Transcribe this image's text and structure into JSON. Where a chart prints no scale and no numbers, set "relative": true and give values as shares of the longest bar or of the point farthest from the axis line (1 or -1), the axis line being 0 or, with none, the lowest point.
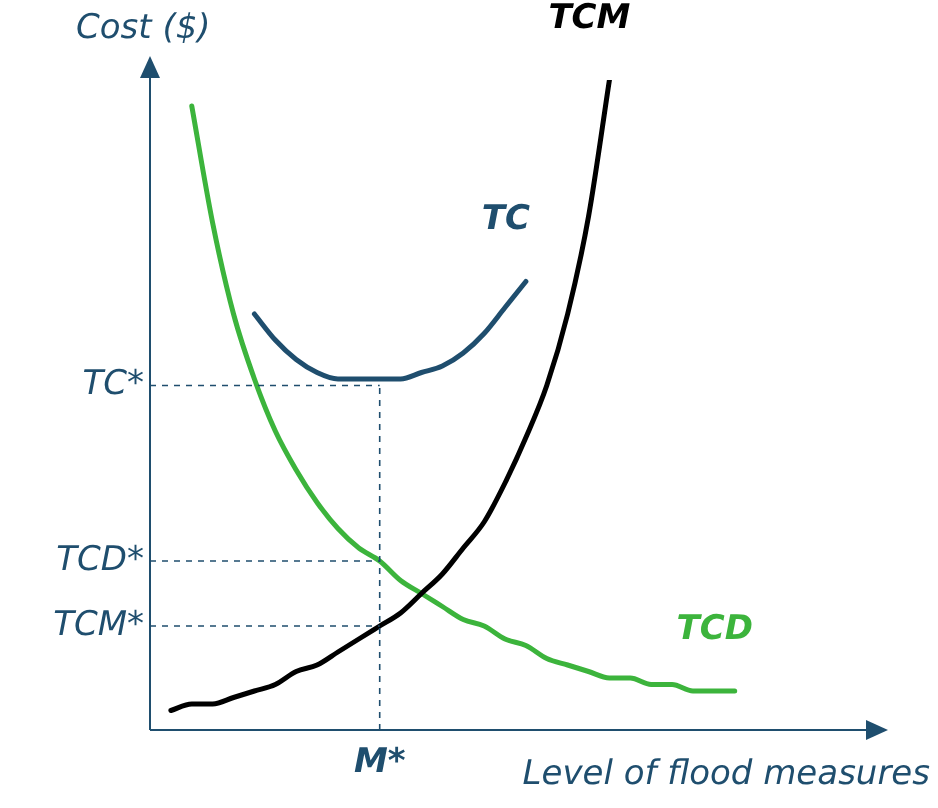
{
  "chart_data": {
    "type": "line",
    "relative": true,
    "ylabel": "Cost ($)",
    "xlabel": "Level of flood measures",
    "categories": [
      null,
      null,
      null,
      null,
      null,
      null,
      null,
      null,
      null,
      null,
      null,
      null,
      null,
      null,
      null,
      null,
      null,
      null,
      null,
      null,
      null,
      null,
      null,
      null,
      null,
      null,
      null,
      null,
      null,
      null,
      null,
      null,
      null,
      null,
      null
    ],
    "series": [
      {
        "name": "TCM",
        "color": "#000000",
        "values": [
          null,
          0.03,
          0.04,
          0.04,
          0.05,
          0.06,
          0.07,
          0.09,
          0.1,
          0.12,
          0.14,
          0.16,
          0.18,
          0.21,
          0.24,
          0.28,
          0.32,
          0.38,
          0.45,
          0.53,
          0.64,
          0.79,
          1.0,
          null,
          null,
          null,
          null,
          null,
          null,
          null,
          null,
          null,
          null,
          null,
          null
        ]
      },
      {
        "name": "TCD",
        "color": "#3cb43c",
        "values": [
          null,
          null,
          0.96,
          0.78,
          0.64,
          0.54,
          0.46,
          0.4,
          0.35,
          0.31,
          0.28,
          0.26,
          0.23,
          0.21,
          0.19,
          0.17,
          0.16,
          0.14,
          0.13,
          0.11,
          0.1,
          0.09,
          0.08,
          0.08,
          0.07,
          0.07,
          0.06,
          0.06,
          0.06,
          null,
          null,
          null,
          null,
          null,
          null
        ]
      },
      {
        "name": "TC",
        "color": "#1f4e6e",
        "values": [
          null,
          null,
          null,
          null,
          null,
          0.64,
          0.6,
          0.57,
          0.55,
          0.54,
          0.54,
          0.54,
          0.54,
          0.55,
          0.56,
          0.58,
          0.61,
          0.65,
          0.69,
          null,
          null,
          null,
          null,
          null,
          null,
          null,
          null,
          null,
          null,
          null,
          null,
          null,
          null,
          null,
          null
        ]
      }
    ],
    "ref_lines": [
      {
        "axis": "y",
        "value": 0.53,
        "label": "TC*",
        "line_style": "dashed"
      },
      {
        "axis": "y",
        "value": 0.26,
        "label": "TCD*",
        "line_style": "dashed"
      },
      {
        "axis": "y",
        "value": 0.16,
        "label": "TCM*",
        "line_style": "dashed"
      }
    ],
    "annotations": [
      "M*"
    ],
    "legend": false,
    "grid": false,
    "marker": "none",
    "line_style": "solid"
  }
}
